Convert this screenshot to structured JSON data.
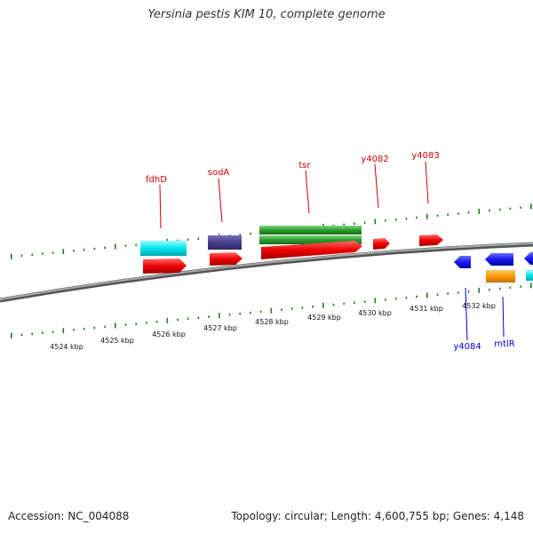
{
  "title": "Yersinia pestis KIM 10, complete genome",
  "footer": {
    "accession": "Accession: NC_004088",
    "summary": "Topology: circular; Length: 4,600,755 bp; Genes: 4,148"
  },
  "colors": {
    "forward_label": "#cc0000",
    "reverse_label": "#0000cc",
    "tick": "#1e7b1e",
    "backbone": "#8a8a8a",
    "red_gene": "#ee0000",
    "blue_gene": "#1a1aee",
    "cyan_gene": "#00e5ee",
    "purple_gene": "#4a3e8e",
    "green_gene": "#2e9e2e",
    "orange_gene": "#ff9a00"
  },
  "scale_labels": [
    "4524 kbp",
    "4525 kbp",
    "4526 kbp",
    "4527 kbp",
    "4528 kbp",
    "4529 kbp",
    "4530 kbp",
    "4531 kbp",
    "4532 kbp"
  ],
  "forward_genes": [
    {
      "name": "fdhD",
      "color": "red_gene"
    },
    {
      "name": "sodA",
      "color": "red_gene"
    },
    {
      "name": "tsr",
      "color": "red_gene"
    },
    {
      "name": "y4082",
      "color": "red_gene"
    },
    {
      "name": "y4083",
      "color": "red_gene"
    }
  ],
  "reverse_genes": [
    {
      "name": "y4084",
      "color": "blue_gene"
    },
    {
      "name": "mtlR",
      "color": "blue_gene"
    }
  ],
  "feature_rows": [
    {
      "kind": "cyan-box",
      "color": "cyan_gene"
    },
    {
      "kind": "purple-box",
      "color": "purple_gene"
    },
    {
      "kind": "green-box",
      "color": "green_gene"
    },
    {
      "kind": "orange-box",
      "color": "orange_gene"
    }
  ]
}
